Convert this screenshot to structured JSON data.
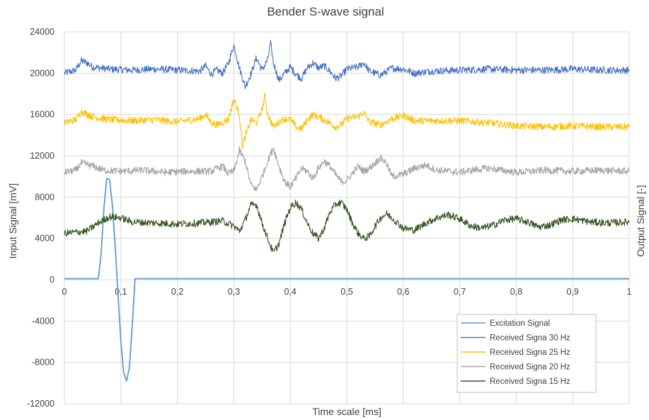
{
  "chart_data": {
    "type": "line",
    "title": "Bender S-wave signal",
    "xlabel": "Time scale [ms]",
    "ylabel": "Input Signal [mV]",
    "y2label": "Output Signal [-]",
    "xlim": [
      0,
      1
    ],
    "ylim": [
      -12000,
      24000
    ],
    "xticks": [
      "0",
      "0,1",
      "0,2",
      "0,3",
      "0,4",
      "0,5",
      "0,6",
      "0,7",
      "0,8",
      "0,9",
      "1"
    ],
    "yticks": [
      "-12000",
      "-8000",
      "-4000",
      "0",
      "4000",
      "8000",
      "12000",
      "16000",
      "20000",
      "24000"
    ],
    "grid": true,
    "legend_position": "bottom-right",
    "series": [
      {
        "name": "Excitation Signal",
        "color": "#5b9bd5",
        "points": [
          [
            0,
            100
          ],
          [
            0.06,
            100
          ],
          [
            0.065,
            2500
          ],
          [
            0.07,
            7000
          ],
          [
            0.075,
            9800
          ],
          [
            0.08,
            9700
          ],
          [
            0.085,
            7200
          ],
          [
            0.09,
            3200
          ],
          [
            0.095,
            -1500
          ],
          [
            0.1,
            -6000
          ],
          [
            0.105,
            -9000
          ],
          [
            0.11,
            -9800
          ],
          [
            0.115,
            -8500
          ],
          [
            0.12,
            -4500
          ],
          [
            0.125,
            100
          ],
          [
            1,
            100
          ]
        ]
      },
      {
        "name": "Received Signa 30 Hz",
        "color": "#4472c4",
        "points": [
          [
            0,
            20000
          ],
          [
            0.02,
            20300
          ],
          [
            0.03,
            21200
          ],
          [
            0.04,
            21000
          ],
          [
            0.05,
            20600
          ],
          [
            0.08,
            20400
          ],
          [
            0.12,
            20300
          ],
          [
            0.16,
            20400
          ],
          [
            0.2,
            20300
          ],
          [
            0.24,
            20200
          ],
          [
            0.25,
            20700
          ],
          [
            0.26,
            19900
          ],
          [
            0.27,
            20300
          ],
          [
            0.28,
            20000
          ],
          [
            0.29,
            20900
          ],
          [
            0.3,
            22700
          ],
          [
            0.31,
            20500
          ],
          [
            0.32,
            18700
          ],
          [
            0.33,
            19900
          ],
          [
            0.34,
            21500
          ],
          [
            0.35,
            20300
          ],
          [
            0.36,
            21300
          ],
          [
            0.365,
            22900
          ],
          [
            0.37,
            21000
          ],
          [
            0.38,
            19300
          ],
          [
            0.39,
            20000
          ],
          [
            0.4,
            20600
          ],
          [
            0.41,
            19900
          ],
          [
            0.42,
            19500
          ],
          [
            0.43,
            20500
          ],
          [
            0.44,
            21000
          ],
          [
            0.45,
            20500
          ],
          [
            0.46,
            20700
          ],
          [
            0.47,
            20200
          ],
          [
            0.48,
            19500
          ],
          [
            0.49,
            19700
          ],
          [
            0.5,
            20400
          ],
          [
            0.52,
            20600
          ],
          [
            0.53,
            21000
          ],
          [
            0.54,
            20200
          ],
          [
            0.56,
            19800
          ],
          [
            0.58,
            20500
          ],
          [
            0.6,
            20400
          ],
          [
            0.62,
            20000
          ],
          [
            0.65,
            20200
          ],
          [
            0.7,
            20300
          ],
          [
            0.75,
            20400
          ],
          [
            0.8,
            20300
          ],
          [
            0.85,
            20300
          ],
          [
            0.9,
            20400
          ],
          [
            0.95,
            20300
          ],
          [
            1,
            20300
          ]
        ]
      },
      {
        "name": "Received Signa 25 Hz",
        "color": "#ffc000",
        "points": [
          [
            0,
            15200
          ],
          [
            0.02,
            15500
          ],
          [
            0.03,
            16300
          ],
          [
            0.05,
            15800
          ],
          [
            0.08,
            15500
          ],
          [
            0.12,
            15400
          ],
          [
            0.16,
            15500
          ],
          [
            0.2,
            15300
          ],
          [
            0.24,
            15600
          ],
          [
            0.25,
            16000
          ],
          [
            0.26,
            15200
          ],
          [
            0.27,
            15000
          ],
          [
            0.29,
            15500
          ],
          [
            0.3,
            17500
          ],
          [
            0.31,
            16000
          ],
          [
            0.315,
            13000
          ],
          [
            0.32,
            13800
          ],
          [
            0.33,
            15500
          ],
          [
            0.34,
            15200
          ],
          [
            0.35,
            16500
          ],
          [
            0.355,
            17800
          ],
          [
            0.36,
            16000
          ],
          [
            0.37,
            14800
          ],
          [
            0.38,
            15300
          ],
          [
            0.39,
            15600
          ],
          [
            0.4,
            15500
          ],
          [
            0.41,
            14800
          ],
          [
            0.42,
            14600
          ],
          [
            0.43,
            15500
          ],
          [
            0.44,
            16000
          ],
          [
            0.46,
            15500
          ],
          [
            0.47,
            15200
          ],
          [
            0.48,
            14800
          ],
          [
            0.49,
            15000
          ],
          [
            0.5,
            15600
          ],
          [
            0.52,
            15800
          ],
          [
            0.53,
            16200
          ],
          [
            0.54,
            15300
          ],
          [
            0.56,
            15000
          ],
          [
            0.58,
            15600
          ],
          [
            0.6,
            15900
          ],
          [
            0.62,
            15400
          ],
          [
            0.65,
            15400
          ],
          [
            0.7,
            15400
          ],
          [
            0.75,
            15200
          ],
          [
            0.8,
            14900
          ],
          [
            0.85,
            14800
          ],
          [
            0.9,
            14900
          ],
          [
            0.95,
            14800
          ],
          [
            1,
            14800
          ]
        ]
      },
      {
        "name": "Received Signa 20 Hz",
        "color": "#a5a5a5",
        "points": [
          [
            0,
            10400
          ],
          [
            0.02,
            10600
          ],
          [
            0.03,
            11300
          ],
          [
            0.05,
            11000
          ],
          [
            0.07,
            10600
          ],
          [
            0.1,
            10500
          ],
          [
            0.14,
            10600
          ],
          [
            0.18,
            10400
          ],
          [
            0.22,
            10500
          ],
          [
            0.26,
            10500
          ],
          [
            0.28,
            11000
          ],
          [
            0.29,
            10300
          ],
          [
            0.3,
            10500
          ],
          [
            0.31,
            12500
          ],
          [
            0.32,
            11500
          ],
          [
            0.33,
            9200
          ],
          [
            0.34,
            8700
          ],
          [
            0.35,
            10000
          ],
          [
            0.36,
            11500
          ],
          [
            0.37,
            12800
          ],
          [
            0.38,
            11000
          ],
          [
            0.39,
            9500
          ],
          [
            0.4,
            9000
          ],
          [
            0.41,
            9800
          ],
          [
            0.42,
            10800
          ],
          [
            0.43,
            10500
          ],
          [
            0.44,
            9800
          ],
          [
            0.45,
            10800
          ],
          [
            0.46,
            11500
          ],
          [
            0.47,
            11000
          ],
          [
            0.48,
            10200
          ],
          [
            0.49,
            9500
          ],
          [
            0.5,
            9600
          ],
          [
            0.51,
            10300
          ],
          [
            0.52,
            11000
          ],
          [
            0.53,
            10500
          ],
          [
            0.54,
            10800
          ],
          [
            0.56,
            11800
          ],
          [
            0.57,
            11300
          ],
          [
            0.58,
            10000
          ],
          [
            0.6,
            10200
          ],
          [
            0.62,
            10800
          ],
          [
            0.64,
            11100
          ],
          [
            0.66,
            10600
          ],
          [
            0.7,
            10400
          ],
          [
            0.72,
            10600
          ],
          [
            0.75,
            10800
          ],
          [
            0.8,
            10400
          ],
          [
            0.85,
            10600
          ],
          [
            0.9,
            10500
          ],
          [
            0.95,
            10600
          ],
          [
            1,
            10500
          ]
        ]
      },
      {
        "name": "Received Signa 15 Hz",
        "color": "#375623",
        "points": [
          [
            0,
            4500
          ],
          [
            0.02,
            4600
          ],
          [
            0.04,
            4700
          ],
          [
            0.06,
            5500
          ],
          [
            0.08,
            6100
          ],
          [
            0.1,
            6000
          ],
          [
            0.12,
            5600
          ],
          [
            0.16,
            5500
          ],
          [
            0.2,
            5400
          ],
          [
            0.24,
            5500
          ],
          [
            0.28,
            5700
          ],
          [
            0.3,
            5200
          ],
          [
            0.31,
            4700
          ],
          [
            0.32,
            5800
          ],
          [
            0.33,
            7200
          ],
          [
            0.34,
            7300
          ],
          [
            0.35,
            5500
          ],
          [
            0.36,
            4000
          ],
          [
            0.37,
            2600
          ],
          [
            0.38,
            3500
          ],
          [
            0.39,
            5500
          ],
          [
            0.4,
            7000
          ],
          [
            0.41,
            7500
          ],
          [
            0.42,
            6800
          ],
          [
            0.43,
            5500
          ],
          [
            0.44,
            4500
          ],
          [
            0.45,
            4000
          ],
          [
            0.46,
            5000
          ],
          [
            0.47,
            6500
          ],
          [
            0.48,
            7300
          ],
          [
            0.49,
            7500
          ],
          [
            0.5,
            6800
          ],
          [
            0.51,
            5500
          ],
          [
            0.52,
            4500
          ],
          [
            0.53,
            4000
          ],
          [
            0.54,
            4200
          ],
          [
            0.55,
            5200
          ],
          [
            0.56,
            6000
          ],
          [
            0.57,
            6400
          ],
          [
            0.58,
            6000
          ],
          [
            0.6,
            5000
          ],
          [
            0.62,
            4800
          ],
          [
            0.64,
            5500
          ],
          [
            0.66,
            6000
          ],
          [
            0.68,
            6300
          ],
          [
            0.7,
            5900
          ],
          [
            0.72,
            5200
          ],
          [
            0.74,
            5000
          ],
          [
            0.76,
            5300
          ],
          [
            0.78,
            5800
          ],
          [
            0.8,
            5900
          ],
          [
            0.82,
            5600
          ],
          [
            0.84,
            5100
          ],
          [
            0.86,
            5300
          ],
          [
            0.88,
            5800
          ],
          [
            0.9,
            5900
          ],
          [
            0.93,
            5600
          ],
          [
            0.96,
            5500
          ],
          [
            1,
            5600
          ]
        ]
      }
    ]
  }
}
